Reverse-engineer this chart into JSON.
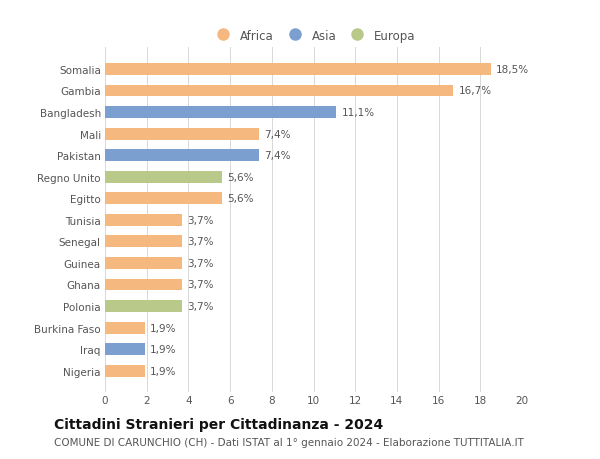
{
  "countries": [
    "Nigeria",
    "Iraq",
    "Burkina Faso",
    "Polonia",
    "Ghana",
    "Guinea",
    "Senegal",
    "Tunisia",
    "Egitto",
    "Regno Unito",
    "Pakistan",
    "Mali",
    "Bangladesh",
    "Gambia",
    "Somalia"
  ],
  "values": [
    1.9,
    1.9,
    1.9,
    3.7,
    3.7,
    3.7,
    3.7,
    3.7,
    5.6,
    5.6,
    7.4,
    7.4,
    11.1,
    16.7,
    18.5
  ],
  "continents": [
    "Africa",
    "Asia",
    "Africa",
    "Europa",
    "Africa",
    "Africa",
    "Africa",
    "Africa",
    "Africa",
    "Europa",
    "Asia",
    "Africa",
    "Asia",
    "Africa",
    "Africa"
  ],
  "labels": [
    "1,9%",
    "1,9%",
    "1,9%",
    "3,7%",
    "3,7%",
    "3,7%",
    "3,7%",
    "3,7%",
    "5,6%",
    "5,6%",
    "7,4%",
    "7,4%",
    "11,1%",
    "16,7%",
    "18,5%"
  ],
  "colors": {
    "Africa": "#F5B97F",
    "Asia": "#7B9FCF",
    "Europa": "#B8C98A"
  },
  "title": "Cittadini Stranieri per Cittadinanza - 2024",
  "subtitle": "COMUNE DI CARUNCHIO (CH) - Dati ISTAT al 1° gennaio 2024 - Elaborazione TUTTITALIA.IT",
  "xlim": [
    0,
    20
  ],
  "xticks": [
    0,
    2,
    4,
    6,
    8,
    10,
    12,
    14,
    16,
    18,
    20
  ],
  "background_color": "#ffffff",
  "grid_color": "#d8d8d8",
  "bar_height": 0.55,
  "label_fontsize": 7.5,
  "title_fontsize": 10,
  "subtitle_fontsize": 7.5,
  "ytick_fontsize": 7.5,
  "xtick_fontsize": 7.5,
  "legend_fontsize": 8.5
}
